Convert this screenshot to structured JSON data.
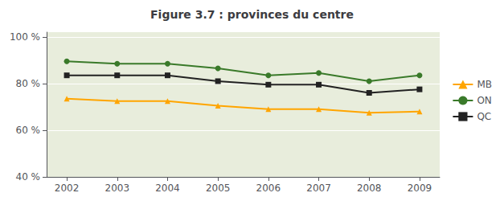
{
  "chart_data": {
    "type": "line",
    "title": "Figure 3.7 : provinces du centre",
    "x": [
      2002,
      2003,
      2004,
      2005,
      2006,
      2007,
      2008,
      2009
    ],
    "xlim": [
      2001.6,
      2009.4
    ],
    "xticks": [
      2002,
      2003,
      2004,
      2005,
      2006,
      2007,
      2008,
      2009
    ],
    "ylim": [
      40,
      102
    ],
    "yticks": [
      {
        "value": 40,
        "label": "40 %"
      },
      {
        "value": 60,
        "label": "60 %"
      },
      {
        "value": 80,
        "label": "80 %"
      },
      {
        "value": 100,
        "label": "100 %"
      }
    ],
    "grid": true,
    "legend": "right",
    "series": [
      {
        "name": "MB",
        "color": "#FFA500",
        "marker": "triangle",
        "values": [
          73.5,
          72.5,
          72.5,
          70.5,
          69.0,
          69.0,
          67.5,
          68.0
        ]
      },
      {
        "name": "ON",
        "color": "#3a7a2a",
        "marker": "circle",
        "values": [
          89.5,
          88.5,
          88.5,
          86.5,
          83.5,
          84.5,
          81.0,
          83.5
        ]
      },
      {
        "name": "QC",
        "color": "#222222",
        "marker": "square",
        "values": [
          83.5,
          83.5,
          83.5,
          81.0,
          79.5,
          79.5,
          76.0,
          77.5
        ]
      }
    ]
  }
}
